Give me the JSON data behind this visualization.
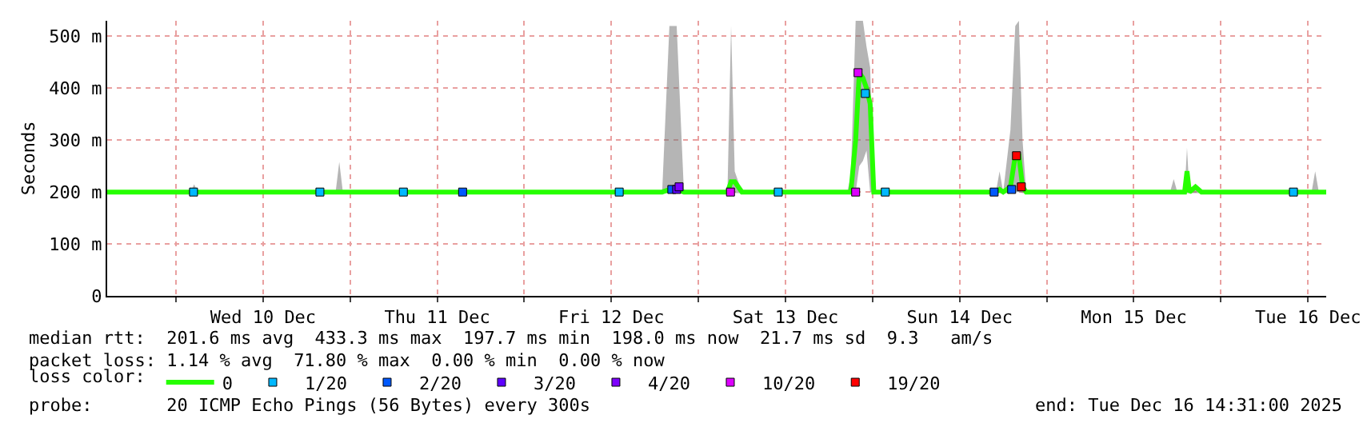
{
  "chart_data": {
    "type": "line",
    "ylabel": "Seconds",
    "legend_title": "loss color:",
    "legend": "bottom",
    "grid": true,
    "marker": "square",
    "line_style": "solid",
    "xlim": [
      "2025-12-09T14:31",
      "2025-12-16T14:31"
    ],
    "xticks": [
      {
        "value": "2025-12-10T00:00",
        "label": null
      },
      {
        "value": "2025-12-10T12:00",
        "label": "Wed 10 Dec"
      },
      {
        "value": "2025-12-11T00:00",
        "label": null
      },
      {
        "value": "2025-12-11T12:00",
        "label": "Thu 11 Dec"
      },
      {
        "value": "2025-12-12T00:00",
        "label": null
      },
      {
        "value": "2025-12-12T12:00",
        "label": "Fri 12 Dec"
      },
      {
        "value": "2025-12-13T00:00",
        "label": null
      },
      {
        "value": "2025-12-13T12:00",
        "label": "Sat 13 Dec"
      },
      {
        "value": "2025-12-14T00:00",
        "label": null
      },
      {
        "value": "2025-12-14T12:00",
        "label": "Sun 14 Dec"
      },
      {
        "value": "2025-12-15T00:00",
        "label": null
      },
      {
        "value": "2025-12-15T12:00",
        "label": "Mon 15 Dec"
      },
      {
        "value": "2025-12-16T00:00",
        "label": null
      },
      {
        "value": "2025-12-16T12:00",
        "label": "Tue 16 Dec"
      }
    ],
    "ylim": [
      0,
      530
    ],
    "yticks": [
      0,
      {
        "value": 100,
        "label": "100 m"
      },
      {
        "value": 200,
        "label": "200 m"
      },
      {
        "value": 300,
        "label": "300 m"
      },
      {
        "value": 400,
        "label": "400 m"
      },
      {
        "value": 500,
        "label": "500 m"
      }
    ],
    "series": [
      {
        "name": "0",
        "color": "#26ff00",
        "marker": "none",
        "x": [
          "2025-12-09T14:31",
          "2025-12-10T02:00",
          "2025-12-10T02:30",
          "2025-12-10T03:00",
          "2025-12-10T22:00",
          "2025-12-10T22:30",
          "2025-12-10T23:00",
          "2025-12-12T19:00",
          "2025-12-12T20:00",
          "2025-12-12T21:00",
          "2025-12-12T22:00",
          "2025-12-13T04:00",
          "2025-12-13T04:30",
          "2025-12-13T05:00",
          "2025-12-13T06:00",
          "2025-12-13T20:30",
          "2025-12-13T21:00",
          "2025-12-13T21:40",
          "2025-12-13T22:10",
          "2025-12-13T22:40",
          "2025-12-13T23:10",
          "2025-12-13T23:40",
          "2025-12-14T00:10",
          "2025-12-14T17:00",
          "2025-12-14T17:30",
          "2025-12-14T18:00",
          "2025-12-14T19:00",
          "2025-12-14T19:40",
          "2025-12-14T20:10",
          "2025-12-14T20:40",
          "2025-12-14T21:10",
          "2025-12-15T17:00",
          "2025-12-15T17:30",
          "2025-12-15T18:00",
          "2025-12-15T19:00",
          "2025-12-15T19:20",
          "2025-12-15T19:40",
          "2025-12-15T20:30",
          "2025-12-15T21:20",
          "2025-12-16T12:30",
          "2025-12-16T13:00",
          "2025-12-16T13:30",
          "2025-12-16T14:31"
        ],
        "values": [
          200,
          200,
          200,
          200,
          200,
          200,
          200,
          200,
          205,
          205,
          200,
          200,
          220,
          220,
          200,
          200,
          200,
          300,
          430,
          420,
          400,
          370,
          200,
          200,
          205,
          200,
          210,
          270,
          270,
          210,
          200,
          200,
          200,
          200,
          200,
          240,
          200,
          210,
          200,
          200,
          200,
          200,
          200
        ],
        "lower": [
          198,
          198,
          198,
          198,
          198,
          198,
          198,
          198,
          198,
          198,
          198,
          198,
          198,
          198,
          198,
          198,
          198,
          200,
          250,
          260,
          280,
          200,
          198,
          198,
          198,
          198,
          198,
          200,
          200,
          198,
          198,
          198,
          198,
          198,
          198,
          198,
          198,
          198,
          198,
          198,
          198,
          198,
          198
        ],
        "upper": [
          200,
          200,
          215,
          200,
          200,
          258,
          200,
          200,
          520,
          520,
          200,
          200,
          520,
          240,
          200,
          200,
          230,
          530,
          530,
          530,
          480,
          440,
          200,
          200,
          240,
          200,
          320,
          520,
          530,
          300,
          200,
          200,
          225,
          200,
          200,
          285,
          200,
          215,
          200,
          200,
          240,
          200,
          200
        ]
      },
      {
        "name": "1/20",
        "color": "#00b8ff",
        "type": "scatter",
        "x": [
          "2025-12-10T02:25",
          "2025-12-10T19:50",
          "2025-12-11T07:20",
          "2025-12-12T13:05",
          "2025-12-13T11:00",
          "2025-12-13T23:00",
          "2025-12-14T01:45",
          "2025-12-16T10:00"
        ],
        "values": [
          200,
          200,
          200,
          200,
          200,
          390,
          200,
          200
        ]
      },
      {
        "name": "2/20",
        "color": "#0059ff",
        "type": "scatter",
        "x": [
          "2025-12-11T15:30",
          "2025-12-12T20:20",
          "2025-12-14T16:45",
          "2025-12-14T19:10"
        ],
        "values": [
          200,
          205,
          200,
          205
        ]
      },
      {
        "name": "3/20",
        "color": "#5e00ff",
        "type": "scatter",
        "x": [
          "2025-12-12T21:00"
        ],
        "values": [
          205
        ]
      },
      {
        "name": "4/20",
        "color": "#7e00ff",
        "type": "scatter",
        "x": [
          "2025-12-12T21:20"
        ],
        "values": [
          210
        ]
      },
      {
        "name": "10/20",
        "color": "#dd00ff",
        "type": "scatter",
        "x": [
          "2025-12-13T04:25",
          "2025-12-13T21:40",
          "2025-12-13T22:00"
        ],
        "values": [
          200,
          200,
          430
        ]
      },
      {
        "name": "19/20",
        "color": "#ff0000",
        "type": "scatter",
        "x": [
          "2025-12-14T19:50",
          "2025-12-14T20:30"
        ],
        "values": [
          270,
          210
        ]
      }
    ],
    "annotations": [
      "median rtt:  201.6 ms avg  433.3 ms max  197.7 ms min  198.0 ms now  21.7 ms sd  9.3   am/s",
      "packet loss: 1.14 % avg  71.80 % max  0.00 % min  0.00 % now",
      "probe:       20 ICMP Echo Pings (56 Bytes) every 300s",
      "end: Tue Dec 16 14:31:00 2025"
    ]
  }
}
